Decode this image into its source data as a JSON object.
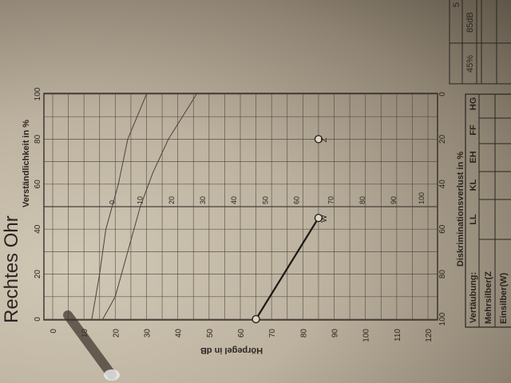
{
  "form": {
    "ear_title": "Rechtes Ohr",
    "table_top": {
      "values": [
        "45%",
        "85dB"
      ],
      "partial": "5"
    },
    "masking_table": {
      "header": "Vertäubung:",
      "columns": [
        "LL",
        "KL",
        "EH",
        "FF",
        "HG"
      ],
      "rows": [
        "Mehrsilber(Z",
        "Einsilber(W)"
      ]
    }
  },
  "chart_data": {
    "type": "line",
    "title": "",
    "xlabel": "Hörpegel in dB",
    "ylabel": "Verständlichkeit in %",
    "y2label": "Diskriminationsverlust in %",
    "xlim": [
      0,
      120
    ],
    "ylim": [
      0,
      100
    ],
    "x_ticks": [
      0,
      10,
      20,
      30,
      40,
      50,
      60,
      70,
      80,
      90,
      100,
      110,
      120
    ],
    "y_ticks": [
      0,
      20,
      40,
      60,
      80,
      100
    ],
    "y2_ticks": [
      100,
      80,
      60,
      40,
      20,
      0
    ],
    "grid": true,
    "reference_line_50pct_labels": {
      "values": [
        0,
        10,
        20,
        30,
        40,
        50,
        60,
        70,
        80,
        90,
        100
      ],
      "at_db": [
        19,
        28,
        38,
        48,
        58,
        68,
        78,
        89,
        99,
        109,
        118
      ]
    },
    "reference_curves": [
      {
        "points": [
          [
            12.5,
            0
          ],
          [
            15,
            20
          ],
          [
            17,
            40
          ],
          [
            19,
            50
          ],
          [
            21,
            60
          ],
          [
            24,
            80
          ],
          [
            27,
            90
          ],
          [
            30,
            100
          ]
        ]
      },
      {
        "points": [
          [
            16,
            0
          ],
          [
            20,
            10
          ],
          [
            24,
            30
          ],
          [
            28,
            50
          ],
          [
            32,
            65
          ],
          [
            37,
            80
          ],
          [
            46,
            100
          ]
        ]
      }
    ],
    "series": [
      {
        "name": "W",
        "points": [
          [
            65,
            0
          ],
          [
            85,
            45
          ]
        ]
      },
      {
        "name": "Z",
        "points": [
          [
            85,
            80
          ]
        ]
      }
    ],
    "colors": {
      "ink": "#2a2520",
      "grid": "#4a443c",
      "paper": "#c4baa8"
    }
  }
}
